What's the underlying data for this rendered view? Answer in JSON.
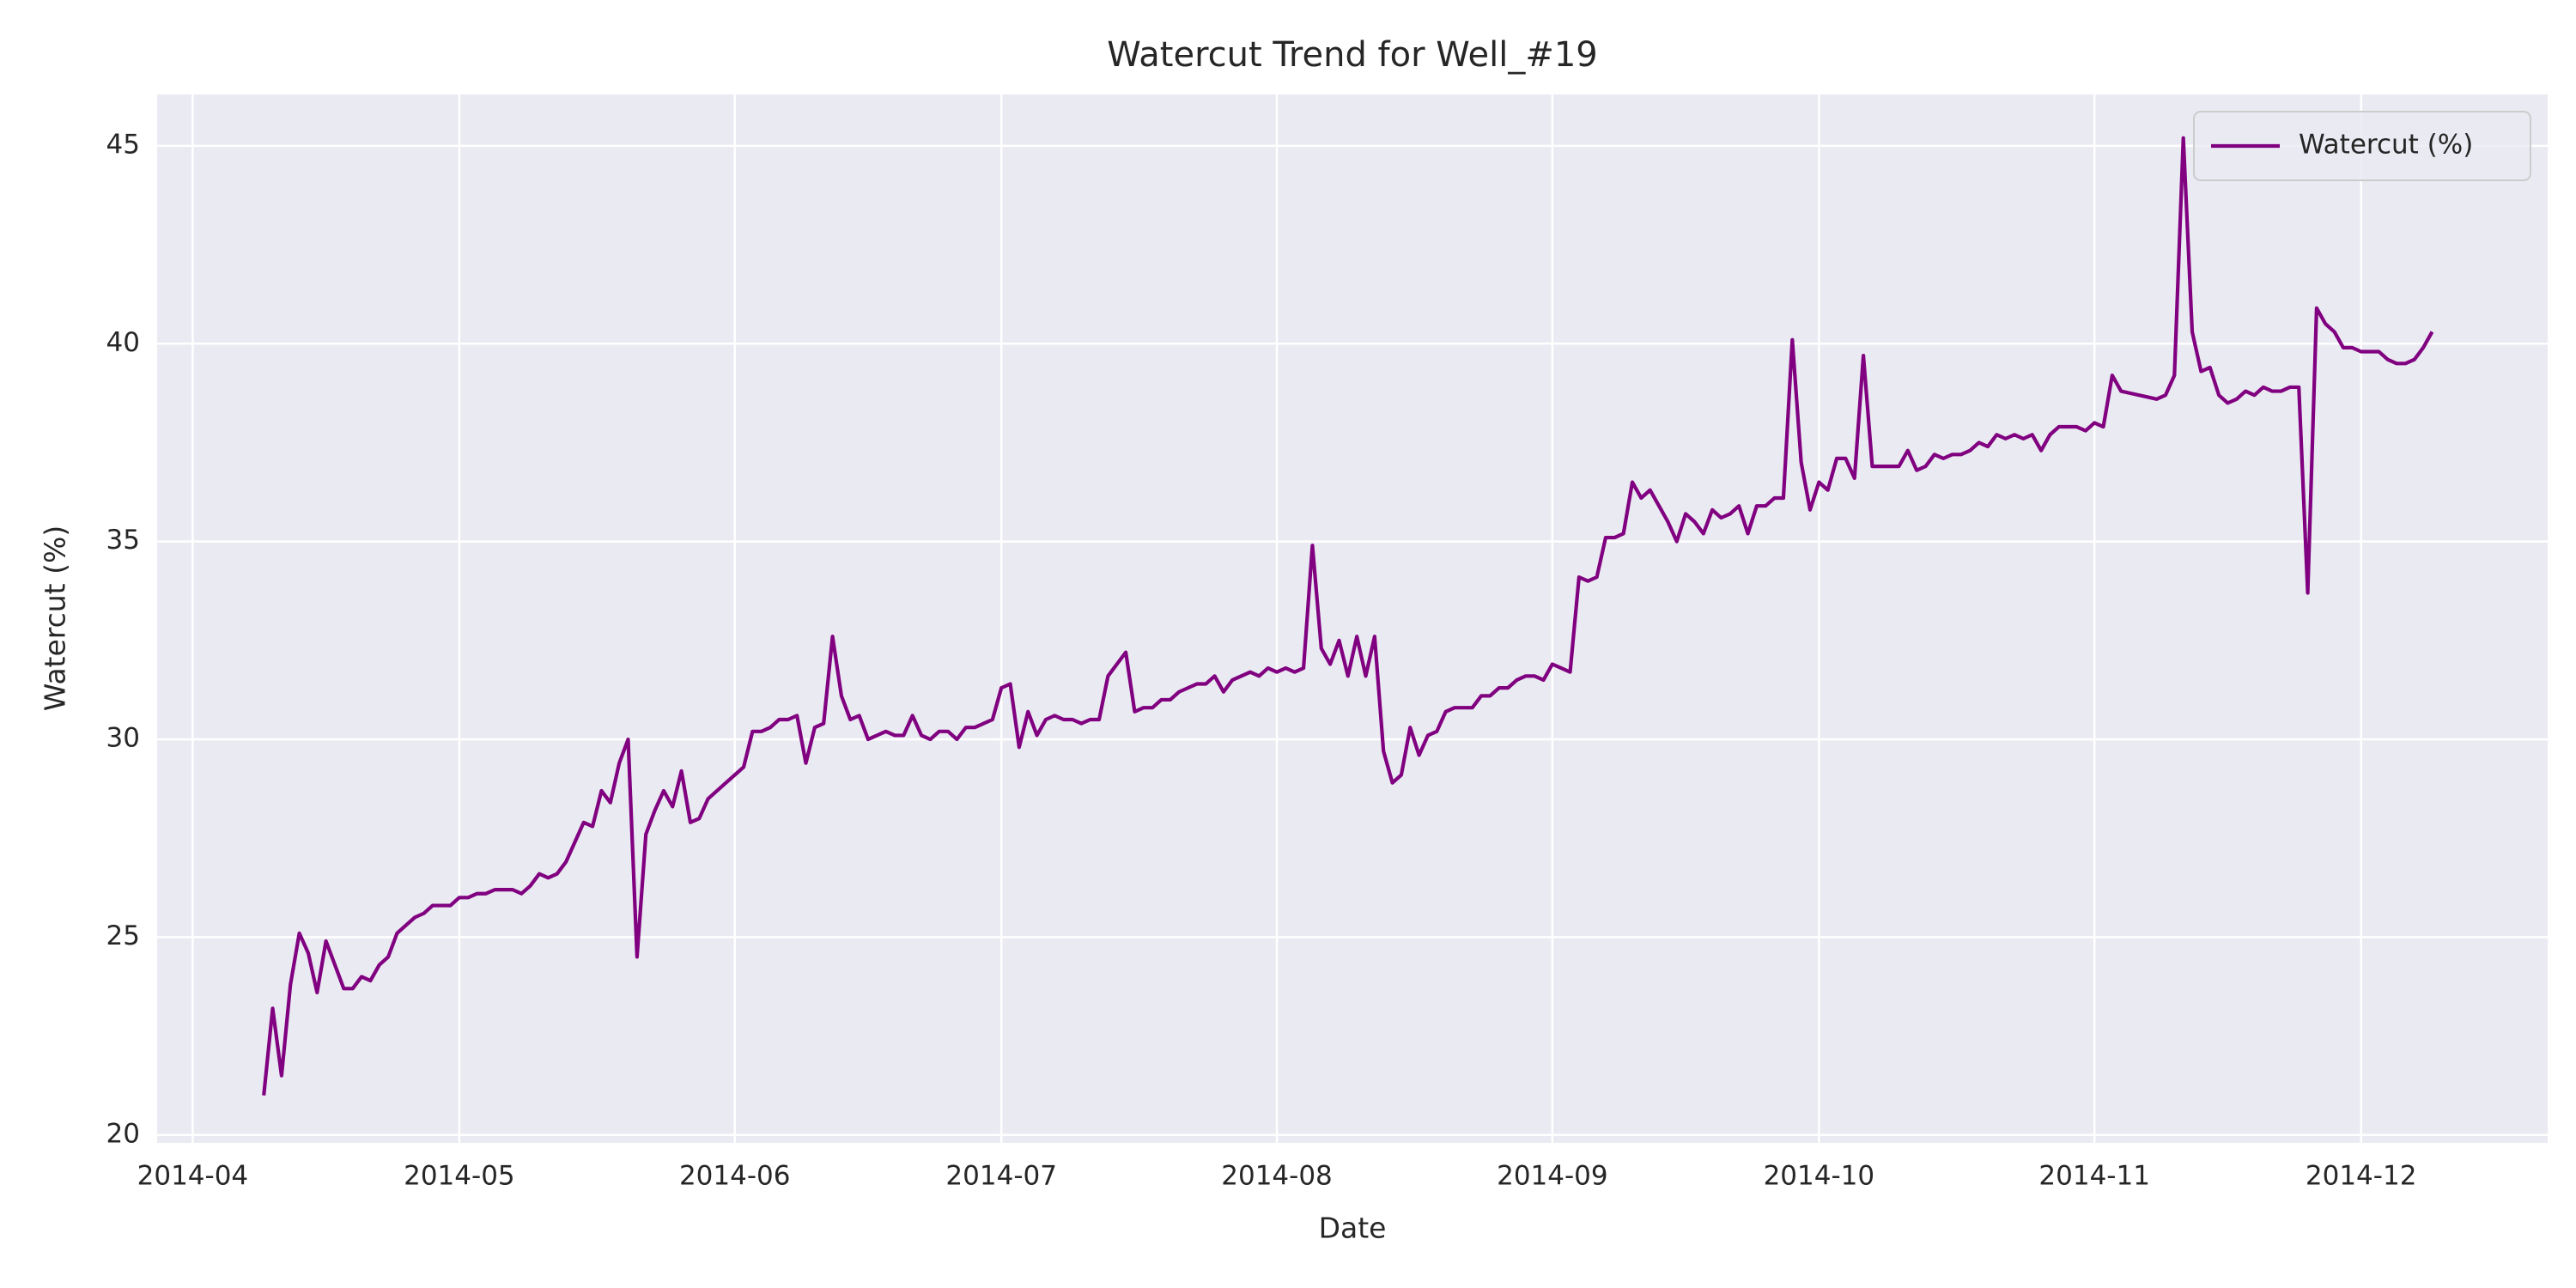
{
  "chart_data": {
    "type": "line",
    "title": "Watercut Trend for Well_#19",
    "xlabel": "Date",
    "ylabel": "Watercut (%)",
    "x": [
      "2014-04-09",
      "2014-04-10",
      "2014-04-11",
      "2014-04-12",
      "2014-04-13",
      "2014-04-14",
      "2014-04-15",
      "2014-04-16",
      "2014-04-17",
      "2014-04-18",
      "2014-04-19",
      "2014-04-20",
      "2014-04-21",
      "2014-04-22",
      "2014-04-23",
      "2014-04-24",
      "2014-04-25",
      "2014-04-26",
      "2014-04-27",
      "2014-04-28",
      "2014-04-29",
      "2014-04-30",
      "2014-05-01",
      "2014-05-02",
      "2014-05-03",
      "2014-05-04",
      "2014-05-05",
      "2014-05-06",
      "2014-05-07",
      "2014-05-08",
      "2014-05-09",
      "2014-05-10",
      "2014-05-11",
      "2014-05-12",
      "2014-05-13",
      "2014-05-14",
      "2014-05-15",
      "2014-05-16",
      "2014-05-17",
      "2014-05-18",
      "2014-05-19",
      "2014-05-20",
      "2014-05-21",
      "2014-05-22",
      "2014-05-23",
      "2014-05-24",
      "2014-05-25",
      "2014-05-26",
      "2014-05-27",
      "2014-05-28",
      "2014-05-29",
      "2014-05-30",
      "2014-05-31",
      "2014-06-01",
      "2014-06-02",
      "2014-06-03",
      "2014-06-04",
      "2014-06-05",
      "2014-06-06",
      "2014-06-07",
      "2014-06-08",
      "2014-06-09",
      "2014-06-10",
      "2014-06-11",
      "2014-06-12",
      "2014-06-13",
      "2014-06-14",
      "2014-06-15",
      "2014-06-16",
      "2014-06-17",
      "2014-06-18",
      "2014-06-19",
      "2014-06-20",
      "2014-06-21",
      "2014-06-22",
      "2014-06-23",
      "2014-06-24",
      "2014-06-25",
      "2014-06-26",
      "2014-06-27",
      "2014-06-28",
      "2014-06-29",
      "2014-06-30",
      "2014-07-01",
      "2014-07-02",
      "2014-07-03",
      "2014-07-04",
      "2014-07-05",
      "2014-07-06",
      "2014-07-07",
      "2014-07-08",
      "2014-07-09",
      "2014-07-10",
      "2014-07-11",
      "2014-07-12",
      "2014-07-13",
      "2014-07-14",
      "2014-07-15",
      "2014-07-16",
      "2014-07-17",
      "2014-07-18",
      "2014-07-19",
      "2014-07-20",
      "2014-07-21",
      "2014-07-22",
      "2014-07-23",
      "2014-07-24",
      "2014-07-25",
      "2014-07-26",
      "2014-07-27",
      "2014-07-28",
      "2014-07-29",
      "2014-07-30",
      "2014-07-31",
      "2014-08-01",
      "2014-08-02",
      "2014-08-03",
      "2014-08-04",
      "2014-08-05",
      "2014-08-06",
      "2014-08-07",
      "2014-08-08",
      "2014-08-09",
      "2014-08-10",
      "2014-08-11",
      "2014-08-12",
      "2014-08-13",
      "2014-08-14",
      "2014-08-15",
      "2014-08-16",
      "2014-08-17",
      "2014-08-18",
      "2014-08-19",
      "2014-08-20",
      "2014-08-21",
      "2014-08-22",
      "2014-08-23",
      "2014-08-24",
      "2014-08-25",
      "2014-08-26",
      "2014-08-27",
      "2014-08-28",
      "2014-08-29",
      "2014-08-30",
      "2014-08-31",
      "2014-09-01",
      "2014-09-02",
      "2014-09-03",
      "2014-09-04",
      "2014-09-05",
      "2014-09-06",
      "2014-09-07",
      "2014-09-08",
      "2014-09-09",
      "2014-09-10",
      "2014-09-11",
      "2014-09-12",
      "2014-09-13",
      "2014-09-14",
      "2014-09-15",
      "2014-09-16",
      "2014-09-17",
      "2014-09-18",
      "2014-09-19",
      "2014-09-20",
      "2014-09-21",
      "2014-09-22",
      "2014-09-23",
      "2014-09-24",
      "2014-09-25",
      "2014-09-26",
      "2014-09-27",
      "2014-09-28",
      "2014-09-29",
      "2014-09-30",
      "2014-10-01",
      "2014-10-02",
      "2014-10-03",
      "2014-10-04",
      "2014-10-05",
      "2014-10-06",
      "2014-10-07",
      "2014-10-08",
      "2014-10-09",
      "2014-10-10",
      "2014-10-11",
      "2014-10-12",
      "2014-10-13",
      "2014-10-14",
      "2014-10-15",
      "2014-10-16",
      "2014-10-17",
      "2014-10-18",
      "2014-10-19",
      "2014-10-20",
      "2014-10-21",
      "2014-10-22",
      "2014-10-23",
      "2014-10-24",
      "2014-10-25",
      "2014-10-26",
      "2014-10-27",
      "2014-10-28",
      "2014-10-29",
      "2014-10-30",
      "2014-10-31",
      "2014-11-01",
      "2014-11-02",
      "2014-11-03",
      "2014-11-04",
      "2014-11-05",
      "2014-11-06",
      "2014-11-07",
      "2014-11-08",
      "2014-11-09",
      "2014-11-10",
      "2014-11-11",
      "2014-11-12",
      "2014-11-13",
      "2014-11-14",
      "2014-11-15",
      "2014-11-16",
      "2014-11-17",
      "2014-11-18",
      "2014-11-19",
      "2014-11-20",
      "2014-11-21",
      "2014-11-22",
      "2014-11-23",
      "2014-11-24",
      "2014-11-25",
      "2014-11-26",
      "2014-11-27",
      "2014-11-28",
      "2014-11-29",
      "2014-11-30",
      "2014-12-01",
      "2014-12-02",
      "2014-12-03",
      "2014-12-04",
      "2014-12-05",
      "2014-12-06",
      "2014-12-07",
      "2014-12-08",
      "2014-12-09"
    ],
    "series": [
      {
        "name": "Watercut (%)",
        "color": "#800080",
        "values": [
          21.0,
          23.2,
          21.5,
          23.8,
          25.1,
          24.6,
          23.6,
          24.9,
          24.3,
          23.7,
          23.7,
          24.0,
          23.9,
          24.3,
          24.5,
          25.1,
          25.3,
          25.5,
          25.6,
          25.8,
          25.8,
          25.8,
          26.0,
          26.0,
          26.1,
          26.1,
          26.2,
          26.2,
          26.2,
          26.1,
          26.3,
          26.6,
          26.5,
          26.6,
          26.9,
          27.4,
          27.9,
          27.8,
          28.7,
          28.4,
          29.4,
          30.0,
          24.5,
          27.6,
          28.2,
          28.7,
          28.3,
          29.2,
          27.9,
          28.0,
          28.5,
          28.7,
          28.9,
          29.1,
          29.3,
          30.2,
          30.2,
          30.3,
          30.5,
          30.5,
          30.6,
          29.4,
          30.3,
          30.4,
          32.6,
          31.1,
          30.5,
          30.6,
          30.0,
          30.1,
          30.2,
          30.1,
          30.1,
          30.6,
          30.1,
          30.0,
          30.2,
          30.2,
          30.0,
          30.3,
          30.3,
          30.4,
          30.5,
          31.3,
          31.4,
          29.8,
          30.7,
          30.1,
          30.5,
          30.6,
          30.5,
          30.5,
          30.4,
          30.5,
          30.5,
          31.6,
          31.9,
          32.2,
          30.7,
          30.8,
          30.8,
          31.0,
          31.0,
          31.2,
          31.3,
          31.4,
          31.4,
          31.6,
          31.2,
          31.5,
          31.6,
          31.7,
          31.6,
          31.8,
          31.7,
          31.8,
          31.7,
          31.8,
          34.9,
          32.3,
          31.9,
          32.5,
          31.6,
          32.6,
          31.6,
          32.6,
          29.7,
          28.9,
          29.1,
          30.3,
          29.6,
          30.1,
          30.2,
          30.7,
          30.8,
          30.8,
          30.8,
          31.1,
          31.1,
          31.3,
          31.3,
          31.5,
          31.6,
          31.6,
          31.5,
          31.9,
          31.8,
          31.7,
          34.1,
          34.0,
          34.1,
          35.1,
          35.1,
          35.2,
          36.5,
          36.1,
          36.3,
          35.9,
          35.5,
          35.0,
          35.7,
          35.5,
          35.2,
          35.8,
          35.6,
          35.7,
          35.9,
          35.2,
          35.9,
          35.9,
          36.1,
          36.1,
          40.1,
          37.0,
          35.8,
          36.5,
          36.3,
          37.1,
          37.1,
          36.6,
          39.7,
          36.9,
          36.9,
          36.9,
          36.9,
          37.3,
          36.8,
          36.9,
          37.2,
          37.1,
          37.2,
          37.2,
          37.3,
          37.5,
          37.4,
          37.7,
          37.6,
          37.7,
          37.6,
          37.7,
          37.3,
          37.7,
          37.9,
          37.9,
          37.9,
          37.8,
          38.0,
          37.9,
          39.2,
          38.8,
          38.75,
          38.7,
          38.65,
          38.6,
          38.7,
          39.2,
          45.2,
          40.3,
          39.3,
          39.4,
          38.7,
          38.5,
          38.6,
          38.8,
          38.7,
          38.9,
          38.8,
          38.8,
          38.9,
          38.9,
          33.7,
          40.9,
          40.5,
          40.3,
          39.9,
          39.9,
          39.8,
          39.8,
          39.8,
          39.6,
          39.5,
          39.5,
          39.6,
          39.9,
          40.3
        ]
      }
    ],
    "xlim": [
      "2014-03-28",
      "2014-12-22"
    ],
    "xticks": [
      {
        "value": "2014-04-01",
        "label": "2014-04"
      },
      {
        "value": "2014-05-01",
        "label": "2014-05"
      },
      {
        "value": "2014-06-01",
        "label": "2014-06"
      },
      {
        "value": "2014-07-01",
        "label": "2014-07"
      },
      {
        "value": "2014-08-01",
        "label": "2014-08"
      },
      {
        "value": "2014-09-01",
        "label": "2014-09"
      },
      {
        "value": "2014-10-01",
        "label": "2014-10"
      },
      {
        "value": "2014-11-01",
        "label": "2014-11"
      },
      {
        "value": "2014-12-01",
        "label": "2014-12"
      }
    ],
    "ylim": [
      19.8,
      46.3
    ],
    "yticks": [
      20,
      25,
      30,
      35,
      40,
      45
    ],
    "grid": true,
    "legend": "upper right"
  }
}
